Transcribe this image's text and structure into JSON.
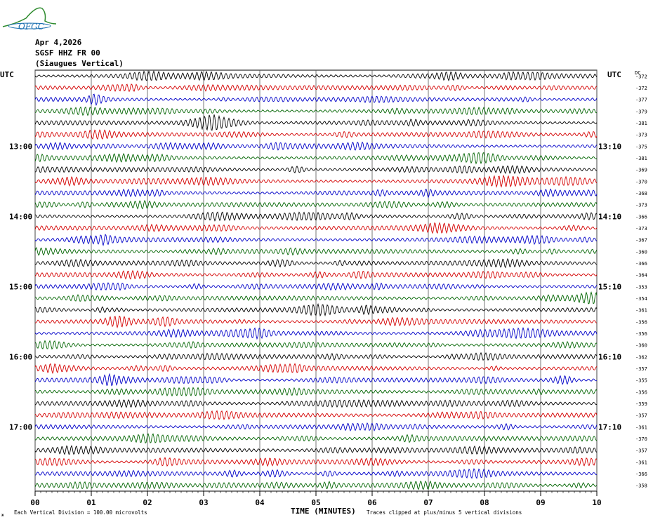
{
  "logo": {
    "text": "OFGC",
    "color": "#1a6fb0",
    "accent": "#2e8b2e"
  },
  "header": {
    "date": "Apr 4,2026",
    "station": "SGSF HHZ FR 00",
    "location": "(Siaugues Vertical)"
  },
  "left_axis_title": "UTC",
  "right_axis_title": "UTC",
  "dc_label": "DC",
  "footer": {
    "scale_note": "Each Vertical Division =  100.00 microvolts",
    "clip_note": "Traces clipped at plus/minus 5 vertical divisions",
    "corner_mark": "ж"
  },
  "colors": [
    "#000000",
    "#d40000",
    "#0000c8",
    "#006400"
  ],
  "chart_data": {
    "type": "line",
    "title": "",
    "xlabel": "TIME (MINUTES)",
    "ylabel": "",
    "xlim": [
      0,
      10
    ],
    "x_ticks": [
      "00",
      "01",
      "02",
      "03",
      "04",
      "05",
      "06",
      "07",
      "08",
      "09",
      "10"
    ],
    "trace_count": 36,
    "left_time_labels": [
      {
        "row": 6,
        "label": "13:00"
      },
      {
        "row": 12,
        "label": "14:00"
      },
      {
        "row": 18,
        "label": "15:00"
      },
      {
        "row": 24,
        "label": "16:00"
      },
      {
        "row": 30,
        "label": "17:00"
      }
    ],
    "right_time_labels": [
      {
        "row": 6,
        "label": "13:10"
      },
      {
        "row": 12,
        "label": "14:10"
      },
      {
        "row": 18,
        "label": "15:10"
      },
      {
        "row": 24,
        "label": "16:10"
      },
      {
        "row": 30,
        "label": "17:10"
      }
    ],
    "dc_offsets": [
      -372,
      -372,
      -377,
      -379,
      -381,
      -373,
      -375,
      -381,
      -369,
      -370,
      -368,
      -373,
      -366,
      -373,
      -367,
      -360,
      -366,
      -364,
      -353,
      -354,
      -361,
      -356,
      -356,
      -360,
      -362,
      -357,
      -355,
      -356,
      -359,
      -357,
      -361,
      -370,
      -357,
      -361,
      -366,
      -358
    ]
  }
}
